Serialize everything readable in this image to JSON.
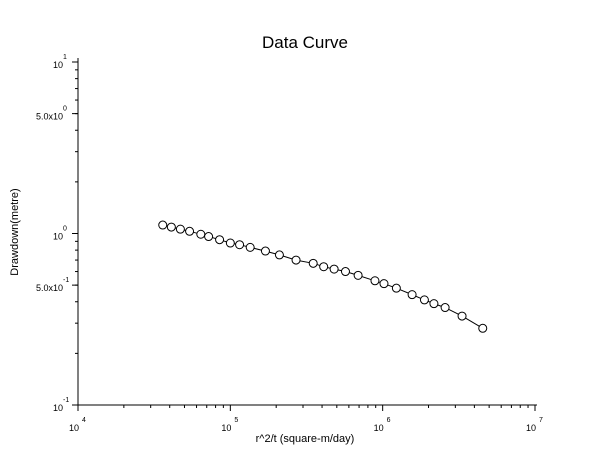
{
  "chart_data": {
    "type": "scatter",
    "title": "Data Curve",
    "xlabel": "r^2/t (square-m/day)",
    "ylabel": "Drawdown(metre)",
    "xscale": "log",
    "yscale": "log",
    "xlim": [
      10000,
      10000000
    ],
    "ylim": [
      0.1,
      10
    ],
    "grid": false,
    "line_color": "#000000",
    "marker_fill": "#ffffff",
    "x_ticks": [
      {
        "value": 10000,
        "base": "10",
        "exp": "4"
      },
      {
        "value": 100000,
        "base": "10",
        "exp": "5"
      },
      {
        "value": 1000000,
        "base": "10",
        "exp": "6"
      },
      {
        "value": 10000000,
        "base": "10",
        "exp": "7"
      }
    ],
    "y_ticks": [
      {
        "value": 0.1,
        "base": "10",
        "exp": "-1"
      },
      {
        "value": 0.5,
        "base": "5.0x10",
        "exp": "-1"
      },
      {
        "value": 1,
        "base": "10",
        "exp": "0"
      },
      {
        "value": 5,
        "base": "5.0x10",
        "exp": "0"
      },
      {
        "value": 10,
        "base": "10",
        "exp": "1"
      }
    ],
    "x": [
      36000,
      41000,
      47000,
      54000,
      64000,
      72000,
      85000,
      100000,
      115000,
      135000,
      170000,
      210000,
      270000,
      350000,
      410000,
      480000,
      570000,
      690000,
      890000,
      1020000,
      1230000,
      1560000,
      1880000,
      2170000,
      2570000,
      3320000,
      4540000
    ],
    "y": [
      1.12,
      1.09,
      1.06,
      1.03,
      0.99,
      0.96,
      0.92,
      0.88,
      0.86,
      0.83,
      0.79,
      0.75,
      0.7,
      0.67,
      0.64,
      0.62,
      0.6,
      0.57,
      0.53,
      0.51,
      0.48,
      0.44,
      0.41,
      0.39,
      0.37,
      0.33,
      0.28
    ]
  }
}
